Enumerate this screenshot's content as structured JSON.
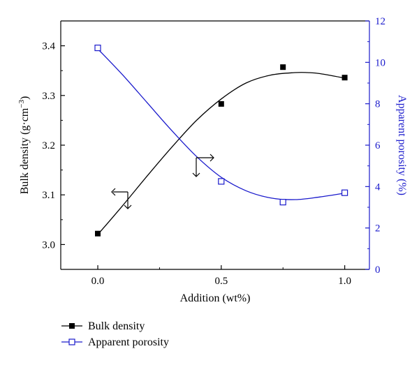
{
  "chart_data": {
    "type": "line",
    "xlabel": "Addition (wt%)",
    "ylabel_left_main": "Bulk density (g·cm",
    "ylabel_left_sup": "−3",
    "ylabel_left_close": ")",
    "ylabel_right": "Apparent porosity (%)",
    "xlim": [
      -0.15,
      1.1
    ],
    "ylim_left": [
      2.95,
      3.45
    ],
    "ylim_right": [
      0,
      12
    ],
    "x_ticks": [
      0.0,
      0.5,
      1.0
    ],
    "x_tick_labels": [
      "0.0",
      "0.5",
      "1.0"
    ],
    "y_left_ticks": [
      3.0,
      3.1,
      3.2,
      3.3,
      3.4
    ],
    "y_left_tick_labels": [
      "3.0",
      "3.1",
      "3.2",
      "3.3",
      "3.4"
    ],
    "y_right_ticks": [
      0,
      2,
      4,
      6,
      8,
      10,
      12
    ],
    "y_right_tick_labels": [
      "0",
      "2",
      "4",
      "6",
      "8",
      "10",
      "12"
    ],
    "series": [
      {
        "name": "Bulk density",
        "axis": "left",
        "color": "#000000",
        "marker": "filled-square",
        "x": [
          0.0,
          0.5,
          0.75,
          1.0
        ],
        "y": [
          3.022,
          3.283,
          3.357,
          3.336
        ],
        "fit_x": [
          0.0,
          0.1,
          0.2,
          0.3,
          0.4,
          0.5,
          0.6,
          0.7,
          0.8,
          0.85,
          0.9,
          1.0
        ],
        "fit_y": [
          3.02,
          3.078,
          3.138,
          3.196,
          3.25,
          3.293,
          3.325,
          3.341,
          3.346,
          3.346,
          3.344,
          3.335
        ]
      },
      {
        "name": "Apparent porosity",
        "axis": "right",
        "color": "#1a1acc",
        "marker": "open-square",
        "x": [
          0.0,
          0.5,
          0.75,
          1.0
        ],
        "y": [
          10.7,
          4.25,
          3.25,
          3.7
        ],
        "fit_x": [
          0.0,
          0.1,
          0.2,
          0.3,
          0.4,
          0.5,
          0.6,
          0.7,
          0.8,
          0.9,
          1.0
        ],
        "fit_y": [
          10.65,
          9.4,
          8.05,
          6.7,
          5.45,
          4.45,
          3.8,
          3.45,
          3.37,
          3.5,
          3.68
        ]
      }
    ],
    "legend_position": "bottom-left"
  }
}
